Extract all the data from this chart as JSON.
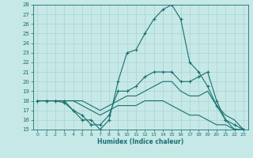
{
  "xlabel": "Humidex (Indice chaleur)",
  "xlim": [
    -0.5,
    23.5
  ],
  "ylim": [
    15,
    28
  ],
  "xticks": [
    0,
    1,
    2,
    3,
    4,
    5,
    6,
    7,
    8,
    9,
    10,
    11,
    12,
    13,
    14,
    15,
    16,
    17,
    18,
    19,
    20,
    21,
    22,
    23
  ],
  "yticks": [
    15,
    16,
    17,
    18,
    19,
    20,
    21,
    22,
    23,
    24,
    25,
    26,
    27,
    28
  ],
  "bg_color": "#c6e8e6",
  "grid_color": "#a8d4d2",
  "line_color": "#1a7070",
  "lines": [
    {
      "x": [
        0,
        1,
        2,
        3,
        4,
        5,
        6,
        7,
        8,
        9,
        10,
        11,
        12,
        13,
        14,
        15,
        16,
        17,
        18,
        19,
        20,
        21,
        22,
        23
      ],
      "y": [
        18,
        18,
        18,
        18,
        17,
        16,
        16,
        15,
        16,
        20,
        23,
        23.3,
        25,
        26.5,
        27.5,
        28,
        26.5,
        22,
        21,
        19.5,
        17.5,
        16,
        15,
        15
      ],
      "marker": true
    },
    {
      "x": [
        0,
        1,
        2,
        3,
        4,
        5,
        6,
        7,
        8,
        9,
        10,
        11,
        12,
        13,
        14,
        15,
        16,
        17,
        18,
        19,
        20,
        21,
        22,
        23
      ],
      "y": [
        18,
        18,
        18,
        17.8,
        17,
        16.5,
        15.5,
        15.5,
        16.5,
        19,
        19,
        19.5,
        20.5,
        21,
        21,
        21,
        20,
        20,
        20.5,
        21,
        18,
        16,
        15.5,
        15
      ],
      "marker": true
    },
    {
      "x": [
        0,
        1,
        2,
        3,
        4,
        5,
        6,
        7,
        8,
        9,
        10,
        11,
        12,
        13,
        14,
        15,
        16,
        17,
        18,
        19,
        20,
        21,
        22,
        23
      ],
      "y": [
        18,
        18,
        18,
        18,
        18,
        18,
        17.5,
        17,
        17.5,
        18,
        18.5,
        18.5,
        19,
        19.5,
        20,
        20,
        19,
        18.5,
        18.5,
        19,
        17.5,
        16.5,
        16,
        15
      ],
      "marker": false
    },
    {
      "x": [
        0,
        1,
        2,
        3,
        4,
        5,
        6,
        7,
        8,
        9,
        10,
        11,
        12,
        13,
        14,
        15,
        16,
        17,
        18,
        19,
        20,
        21,
        22,
        23
      ],
      "y": [
        18,
        18,
        18,
        18,
        18,
        17.5,
        17,
        16.5,
        17,
        17.5,
        17.5,
        17.5,
        18,
        18,
        18,
        17.5,
        17,
        16.5,
        16.5,
        16,
        15.5,
        15.5,
        15,
        15
      ],
      "marker": false
    }
  ]
}
